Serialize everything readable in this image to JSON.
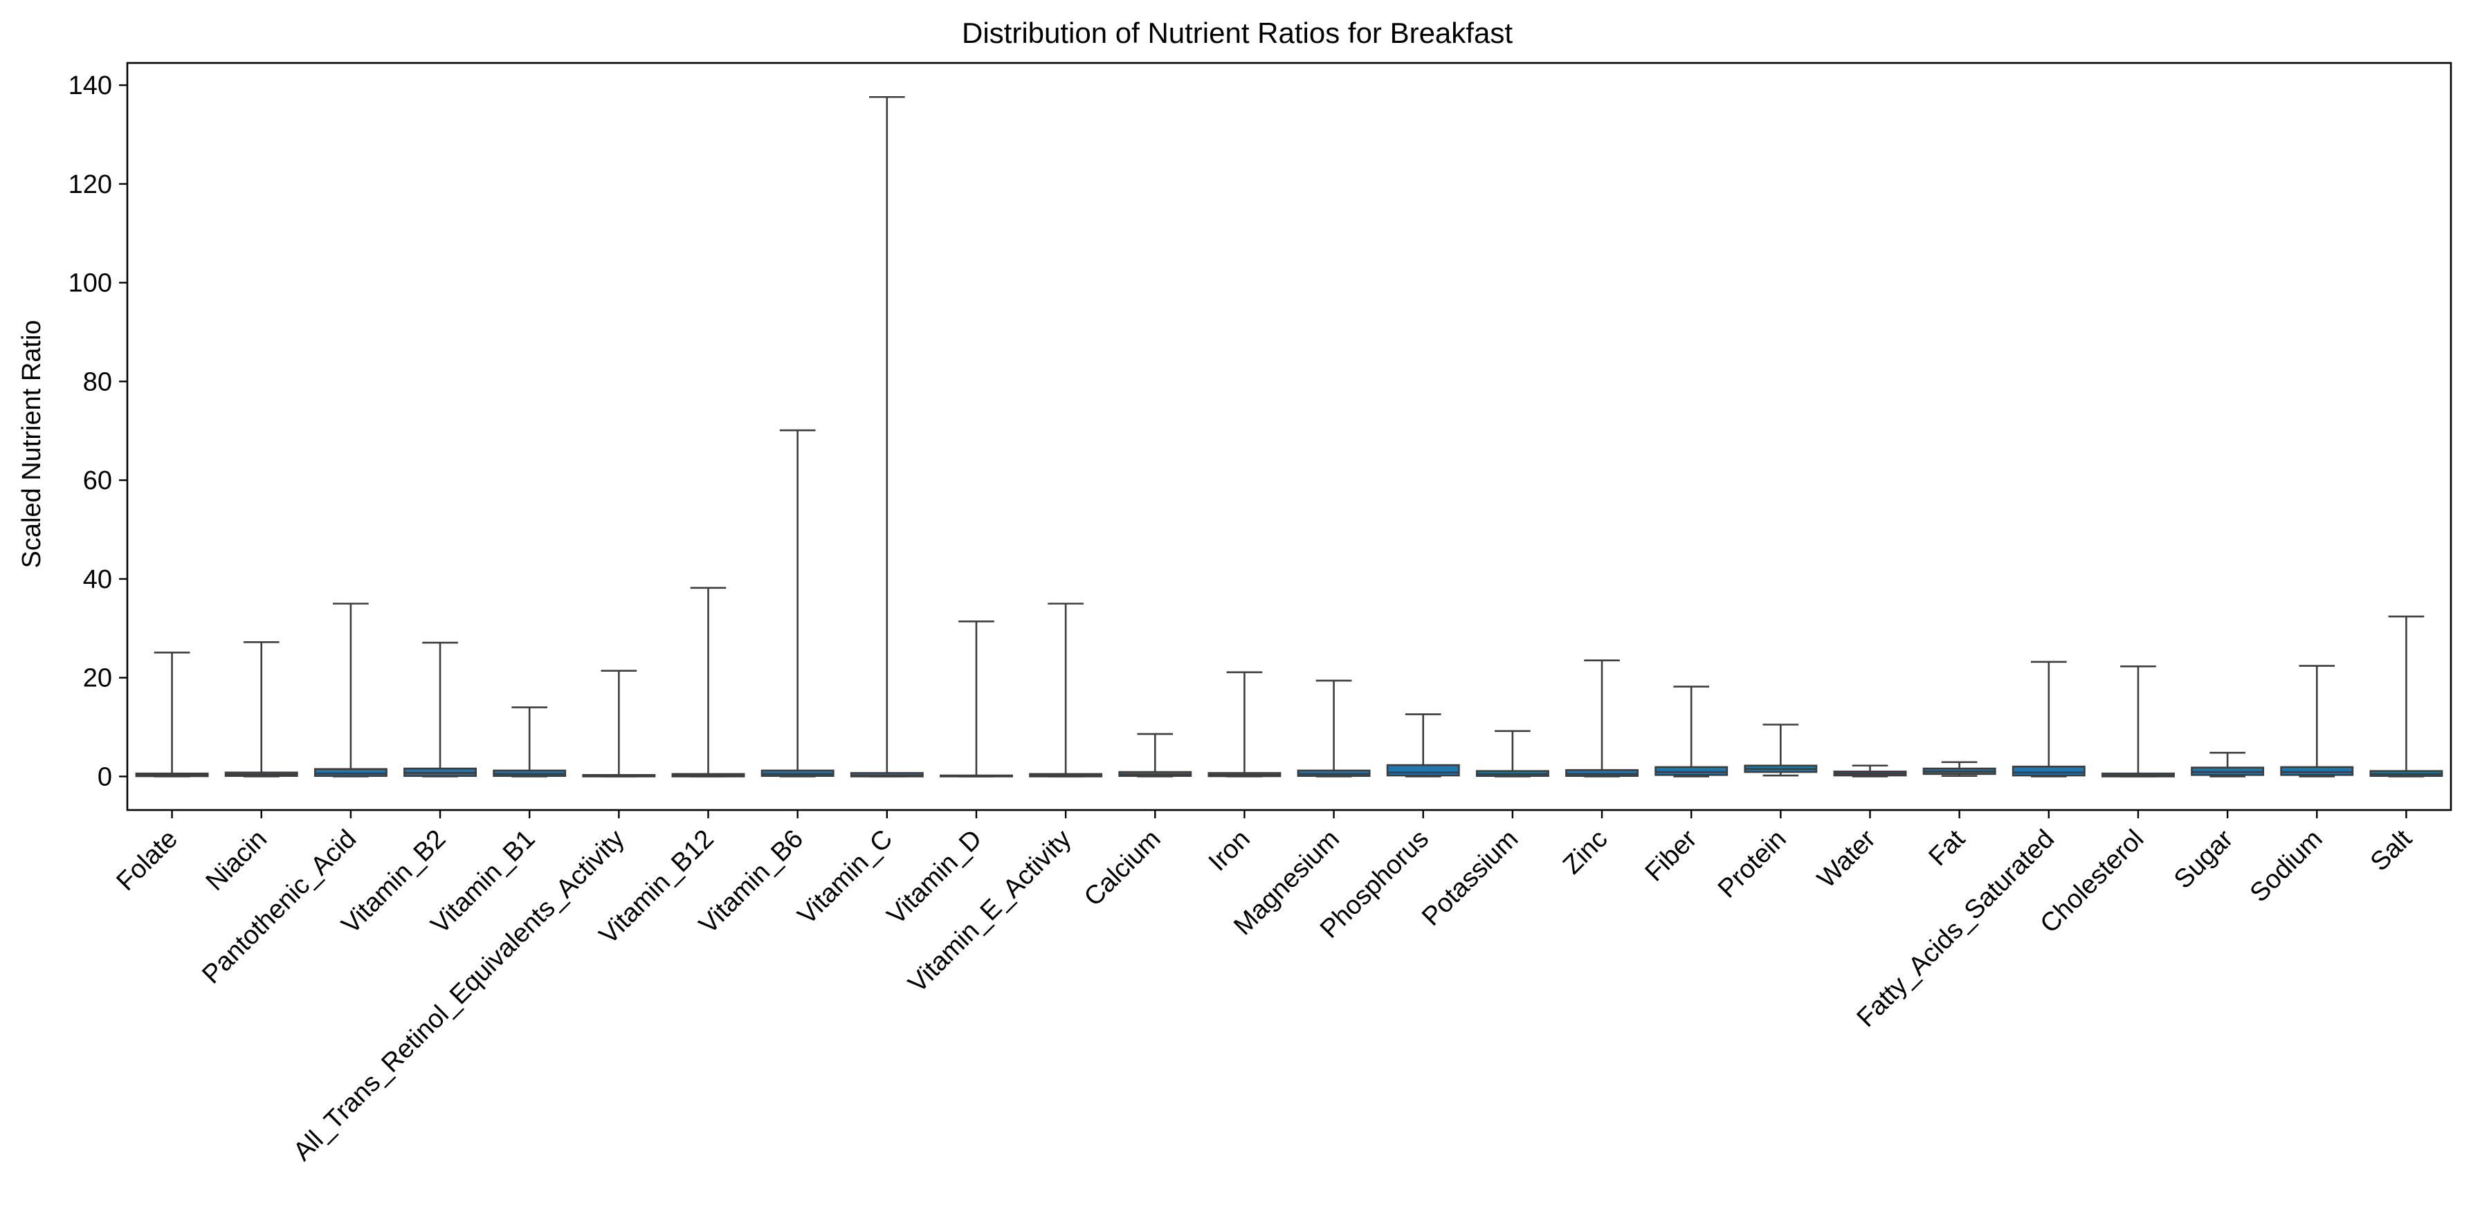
{
  "chart_data": {
    "type": "box",
    "title": "Distribution of Nutrient Ratios for Breakfast",
    "xlabel": "",
    "ylabel": "Scaled Nutrient Ratio",
    "ylim": [
      -6.8,
      144.5
    ],
    "yticks": [
      0,
      20,
      40,
      60,
      80,
      100,
      120,
      140
    ],
    "ytick_labels": [
      "0",
      "20",
      "40",
      "60",
      "80",
      "100",
      "120",
      "140"
    ],
    "grid": false,
    "legend": "none",
    "categories": [
      "Folate",
      "Niacin",
      "Pantothenic_Acid",
      "Vitamin_B2",
      "Vitamin_B1",
      "All_Trans_Retinol_Equivalents_Activity",
      "Vitamin_B12",
      "Vitamin_B6",
      "Vitamin_C",
      "Vitamin_D",
      "Vitamin_E_Activity",
      "Calcium",
      "Iron",
      "Magnesium",
      "Phosphorus",
      "Potassium",
      "Zinc",
      "Fiber",
      "Protein",
      "Water",
      "Fat",
      "Fatty_Acids_Saturated",
      "Cholesterol",
      "Sugar",
      "Sodium",
      "Salt"
    ],
    "boxes": [
      {
        "whislo": 0,
        "q1": 0.05,
        "med": 0.3,
        "q3": 0.6,
        "whishi": 25.1
      },
      {
        "whislo": 0,
        "q1": 0.1,
        "med": 0.4,
        "q3": 0.8,
        "whishi": 27.2
      },
      {
        "whislo": 0,
        "q1": 0.1,
        "med": 0.6,
        "q3": 1.5,
        "whishi": 35.0
      },
      {
        "whislo": 0,
        "q1": 0.1,
        "med": 0.7,
        "q3": 1.6,
        "whishi": 27.1
      },
      {
        "whislo": 0,
        "q1": 0.1,
        "med": 0.5,
        "q3": 1.2,
        "whishi": 14.0
      },
      {
        "whislo": 0,
        "q1": 0.0,
        "med": 0.1,
        "q3": 0.3,
        "whishi": 21.4
      },
      {
        "whislo": 0,
        "q1": 0.0,
        "med": 0.2,
        "q3": 0.5,
        "whishi": 38.2
      },
      {
        "whislo": 0,
        "q1": 0.1,
        "med": 0.5,
        "q3": 1.2,
        "whishi": 70.1
      },
      {
        "whislo": 0,
        "q1": 0.0,
        "med": 0.2,
        "q3": 0.7,
        "whishi": 137.6
      },
      {
        "whislo": 0,
        "q1": 0.0,
        "med": 0.05,
        "q3": 0.2,
        "whishi": 31.4
      },
      {
        "whislo": 0,
        "q1": 0.0,
        "med": 0.2,
        "q3": 0.5,
        "whishi": 35.0
      },
      {
        "whislo": 0,
        "q1": 0.1,
        "med": 0.4,
        "q3": 0.9,
        "whishi": 8.6
      },
      {
        "whislo": 0,
        "q1": 0.05,
        "med": 0.3,
        "q3": 0.7,
        "whishi": 21.1
      },
      {
        "whislo": 0,
        "q1": 0.1,
        "med": 0.5,
        "q3": 1.2,
        "whishi": 19.4
      },
      {
        "whislo": 0,
        "q1": 0.2,
        "med": 0.8,
        "q3": 2.3,
        "whishi": 12.6
      },
      {
        "whislo": 0,
        "q1": 0.1,
        "med": 0.5,
        "q3": 1.1,
        "whishi": 9.2
      },
      {
        "whislo": 0,
        "q1": 0.1,
        "med": 0.5,
        "q3": 1.3,
        "whishi": 23.5
      },
      {
        "whislo": 0,
        "q1": 0.3,
        "med": 0.9,
        "q3": 1.9,
        "whishi": 18.2
      },
      {
        "whislo": 0.2,
        "q1": 0.9,
        "med": 1.5,
        "q3": 2.2,
        "whishi": 10.5
      },
      {
        "whislo": 0,
        "q1": 0.2,
        "med": 0.6,
        "q3": 1.0,
        "whishi": 2.2
      },
      {
        "whislo": 0.1,
        "q1": 0.5,
        "med": 1.0,
        "q3": 1.6,
        "whishi": 2.9
      },
      {
        "whislo": 0,
        "q1": 0.2,
        "med": 0.8,
        "q3": 2.0,
        "whishi": 23.2
      },
      {
        "whislo": 0,
        "q1": 0.0,
        "med": 0.2,
        "q3": 0.6,
        "whishi": 22.3
      },
      {
        "whislo": 0,
        "q1": 0.3,
        "med": 0.9,
        "q3": 1.8,
        "whishi": 4.8
      },
      {
        "whislo": 0,
        "q1": 0.3,
        "med": 0.9,
        "q3": 1.9,
        "whishi": 22.4
      },
      {
        "whislo": 0,
        "q1": 0.1,
        "med": 0.5,
        "q3": 1.1,
        "whishi": 32.4
      }
    ],
    "box_color": "#1f77b4",
    "line_color": "#3d3d3d"
  }
}
